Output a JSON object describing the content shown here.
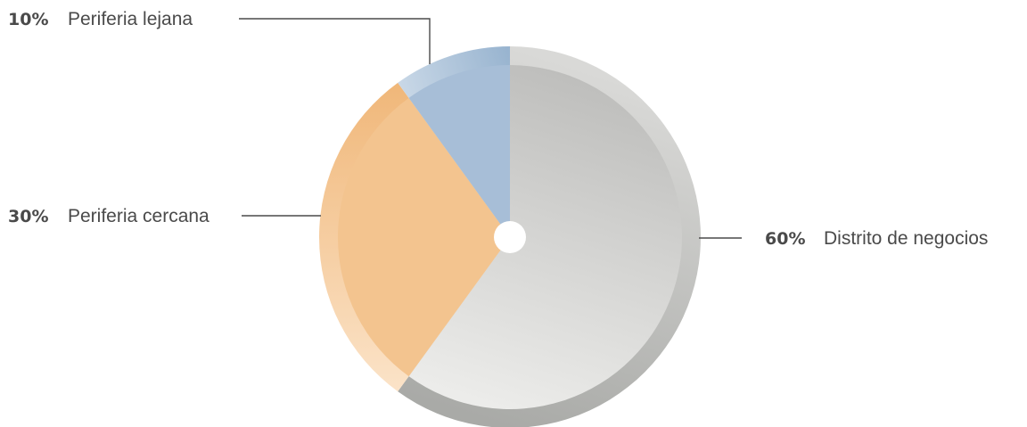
{
  "chart_data": {
    "type": "pie",
    "slices": [
      {
        "label": "Distrito de negocios",
        "percent_label": "60%",
        "value": 60,
        "colors": {
          "inner": "#eeeeec",
          "inner_dark": "#bdbdbb",
          "ring": "#a9aaa7",
          "ring_light": "#d9d9d7"
        }
      },
      {
        "label": "Periferia cercana",
        "percent_label": "30%",
        "value": 30,
        "colors": {
          "inner": "#f3c48f",
          "inner_dark": "#f3c48f",
          "ring": "#f0b779",
          "ring_light": "#fbe3c8"
        }
      },
      {
        "label": "Periferia lejana",
        "percent_label": "10%",
        "value": 10,
        "colors": {
          "inner": "#a7bed7",
          "inner_dark": "#a7bed7",
          "ring": "#97b3cf",
          "ring_light": "#c9d8e7"
        }
      }
    ],
    "title": "",
    "legend": "none",
    "start_angle_deg": 0,
    "direction": "clockwise",
    "center_hole": true
  }
}
